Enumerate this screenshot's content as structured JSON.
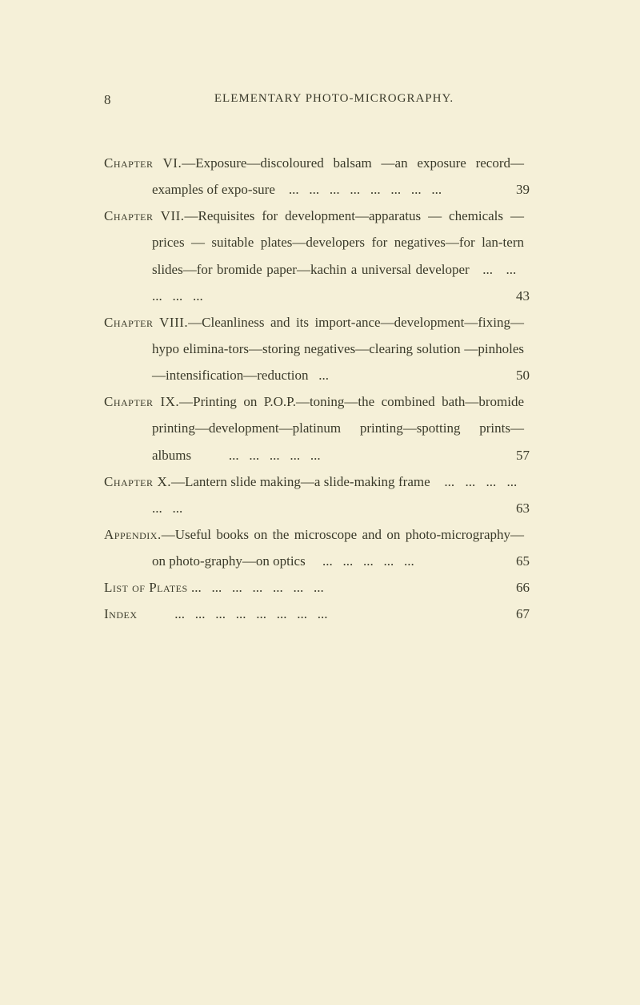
{
  "page_number": "8",
  "header": "ELEMENTARY PHOTO-MICROGRAPHY.",
  "entries": [
    {
      "label": "Chapter VI.",
      "text": "—Exposure—discoloured balsam —an exposure record—examples of expo-sure    ...   ...   ...   ...   ...   ...   ...   ...",
      "page": "39"
    },
    {
      "label": "Chapter VII.",
      "text": "—Requisites for development—apparatus — chemicals — prices — suitable plates—developers for negatives—for lan-tern slides—for bromide paper—kachin a universal developer   ...   ...   ...   ...   ...",
      "page": "43"
    },
    {
      "label": "Chapter VIII.",
      "text": "—Cleanliness and its import-ance—development—fixing—hypo elimina-tors—storing negatives—clearing solution —pinholes—intensification—reduction   ...",
      "page": "50"
    },
    {
      "label": "Chapter IX.",
      "text": "—Printing on P.O.P.—toning—the combined bath—bromide printing—development—platinum printing—spotting prints—albums           ...   ...   ...   ...   ...",
      "page": "57"
    },
    {
      "label": "Chapter X.",
      "text": "—Lantern slide making—a slide-making frame    ...   ...   ...   ...   ...   ...",
      "page": "63"
    },
    {
      "label": "Appendix.",
      "text": "—Useful books on the microscope and on photo-micrography—on photo-graphy—on optics     ...   ...   ...   ...   ...",
      "page": "65"
    },
    {
      "label": "List of Plates",
      "text": " ...   ...   ...   ...   ...   ...   ...",
      "page": "66"
    },
    {
      "label": "Index",
      "text": "           ...   ...   ...   ...   ...   ...   ...   ...",
      "page": "67"
    }
  ]
}
